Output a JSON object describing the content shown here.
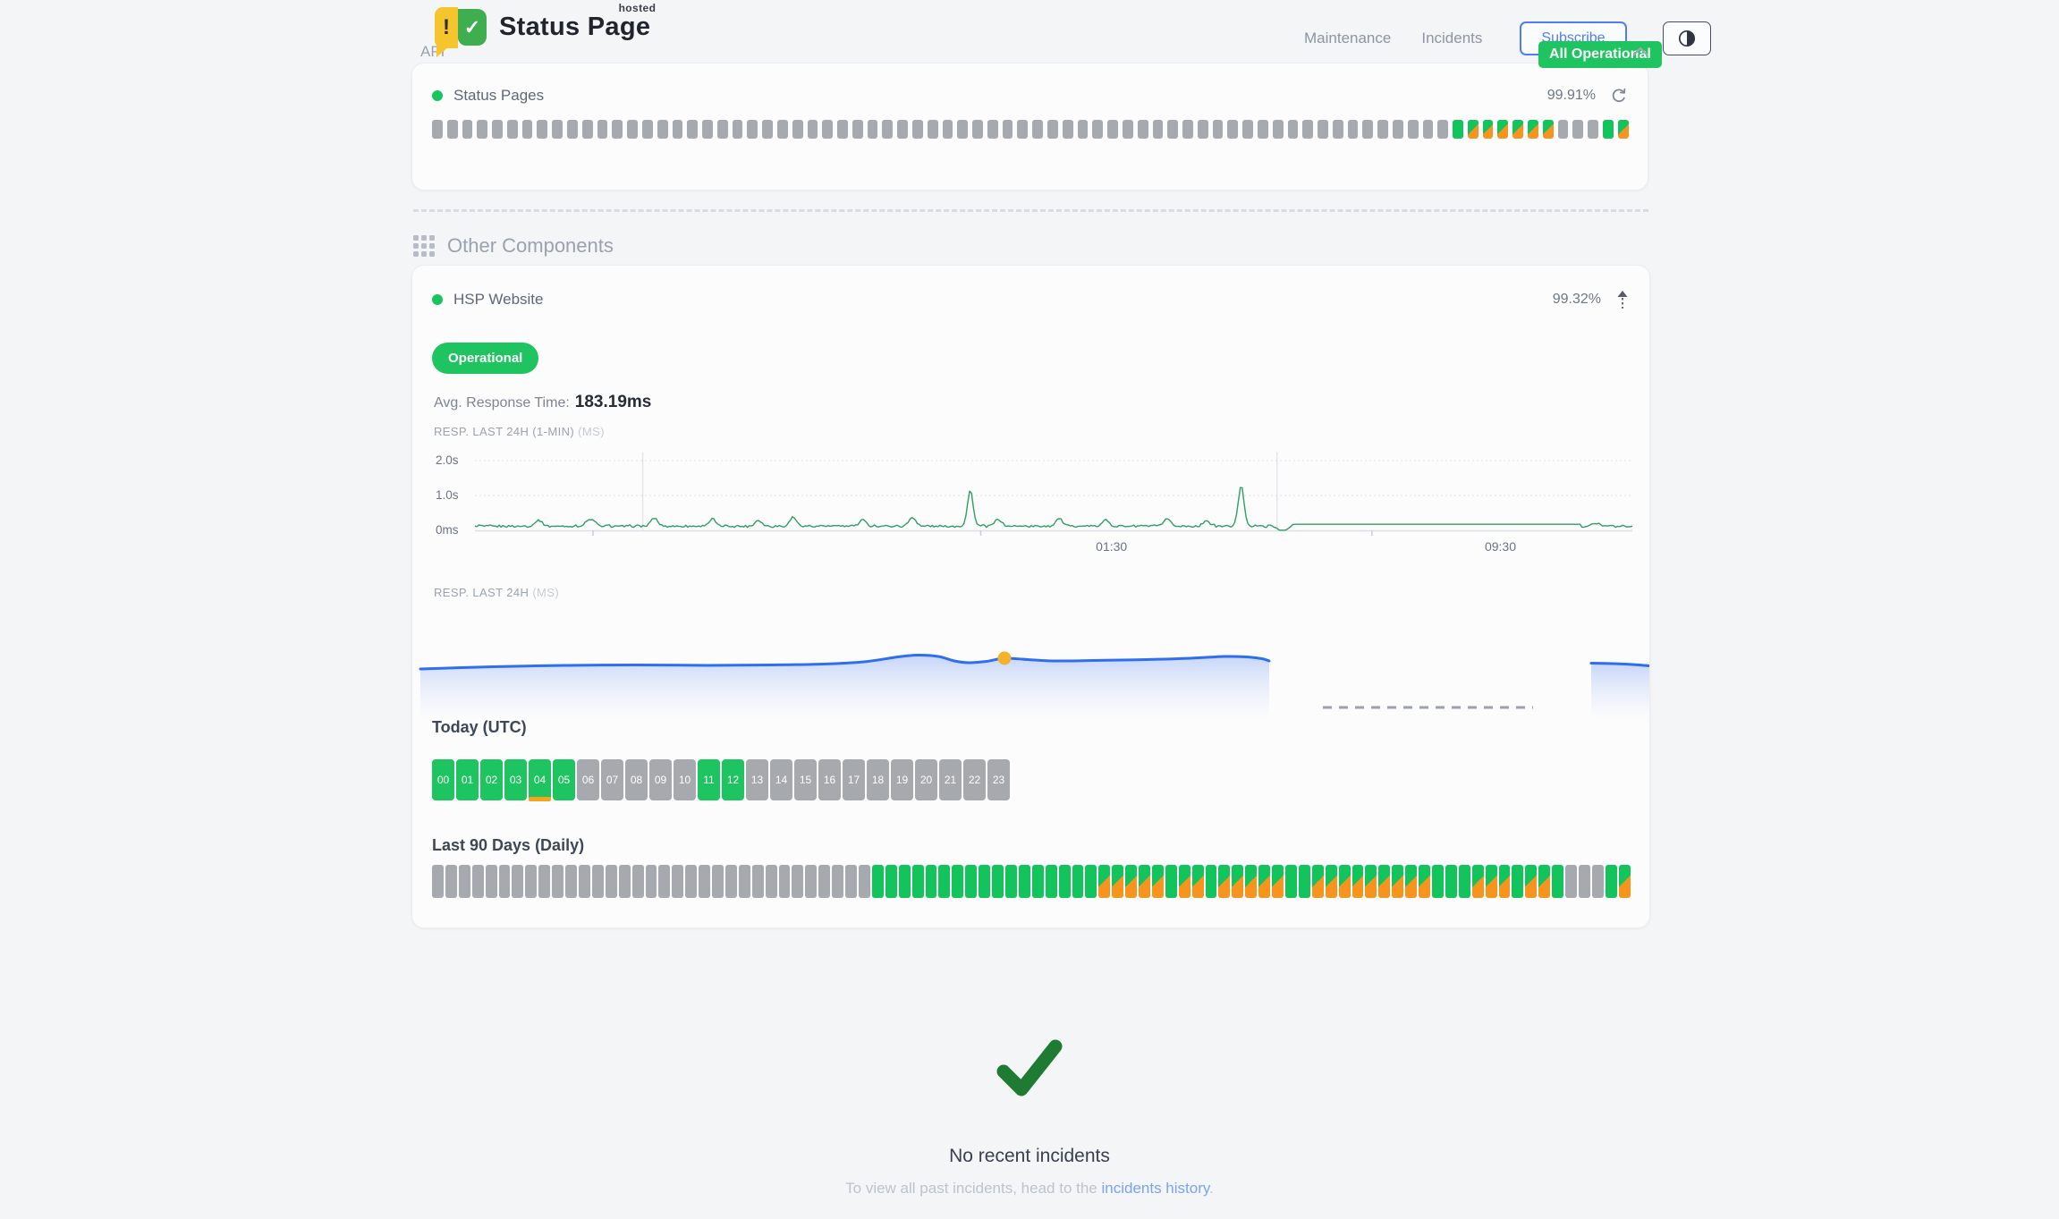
{
  "header": {
    "logo": {
      "exclaim": "!",
      "check": "✓",
      "title": "Status Page",
      "superscript": "hosted"
    },
    "nav": [
      {
        "label": "Maintenance"
      },
      {
        "label": "Incidents"
      }
    ],
    "subscribe_label": "Subscribe",
    "theme_icon": "half-contrast-circle",
    "status_badge": "All Operational"
  },
  "api_section": {
    "title": "API",
    "component": {
      "name": "Status Pages",
      "uptime": "99.91%",
      "refresh_icon": "refresh-icon",
      "bars": "nnnnnnnnnnnnnnnnnnnnnnnnnnnnnnnnnnnnnnnnnnnnnnnnnnnnnnnnnnnnnnnnnnnnuddddddnnnud"
    }
  },
  "other_section": {
    "title": "Other Components",
    "component": {
      "name": "HSP Website",
      "uptime": "99.32%",
      "trend_icon": "arrow-up-icon",
      "status_label": "Operational",
      "avg_label": "Avg. Response Time:",
      "avg_value": "183.19ms",
      "chart_24h_1min": {
        "label": "RESP. LAST 24H (1-MIN)",
        "unit": "(MS)",
        "y_ticks": [
          "2.0s",
          "1.0s",
          "0ms"
        ],
        "x_ticks": [
          {
            "label": "01:30",
            "t": 0.55
          },
          {
            "label": "09:30",
            "t": 0.886
          }
        ]
      },
      "chart_24h": {
        "label": "RESP. LAST 24H",
        "unit": "(MS)"
      },
      "today": {
        "title": "Today (UTC)",
        "labels": [
          "00",
          "01",
          "02",
          "03",
          "04",
          "05",
          "06",
          "07",
          "08",
          "09",
          "10",
          "11",
          "12",
          "13",
          "14",
          "15",
          "16",
          "17",
          "18",
          "19",
          "20",
          "21",
          "22",
          "23"
        ],
        "status": "uuuuuunnnnnuunnnnnnnnnnn",
        "partial": [
          4
        ]
      },
      "last90": {
        "title": "Last 90 Days (Daily)",
        "bars": "nnnnnnnnnnnnnnnnnnnnnnnnnnnnnnnnnuuuuuuuuuuuuuuuuudddddudduddddduuddddddddduuuddduddunnnud"
      }
    }
  },
  "incidents": {
    "title": "No recent incidents",
    "subtitle_prefix": "To view all past incidents, head to the ",
    "link_label": "incidents history",
    "subtitle_suffix": "."
  },
  "colors": {
    "status_green": "#1ec45f",
    "bar_green": "#13c35c",
    "bar_orange": "#f7941e",
    "bar_gray": "#a6a9ae",
    "accent_blue": "#4f7df3",
    "link_blue": "#7ba3f3",
    "chart_line_green": "#2f9e63",
    "chart_line_blue": "#2e6ef0",
    "marker_yellow": "#f2b32c",
    "check_green": "#1d7c31"
  },
  "chart_data": [
    {
      "type": "line",
      "title": "RESP. LAST 24H (1-MIN) (MS)",
      "ylim": [
        "0ms",
        "2.0s"
      ],
      "y_ticks": [
        "2.0s",
        "1.0s",
        "0ms"
      ],
      "x_ticks": [
        "01:30",
        "09:30"
      ],
      "series": [
        {
          "name": "response-time-1min",
          "baseline_s": 0.15,
          "flat_segment_s": 0.18,
          "spikes": [
            {
              "t_frac": 0.428,
              "value_s": 1.15
            },
            {
              "t_frac": 0.662,
              "value_s": 1.3
            }
          ],
          "flat_segment_range_frac": [
            0.705,
            0.955
          ]
        }
      ],
      "grid": true,
      "legend": false
    },
    {
      "type": "area",
      "title": "RESP. LAST 24H (MS)",
      "series": [
        {
          "name": "response-time-avg",
          "approx_avg_ms": 183.19,
          "shape": "smooth low-variance wave, highlighted point at 69% of first segment, data gap from 70%-95% shown as dashed line, short segment at far right"
        }
      ],
      "grid": false,
      "legend": false
    }
  ]
}
